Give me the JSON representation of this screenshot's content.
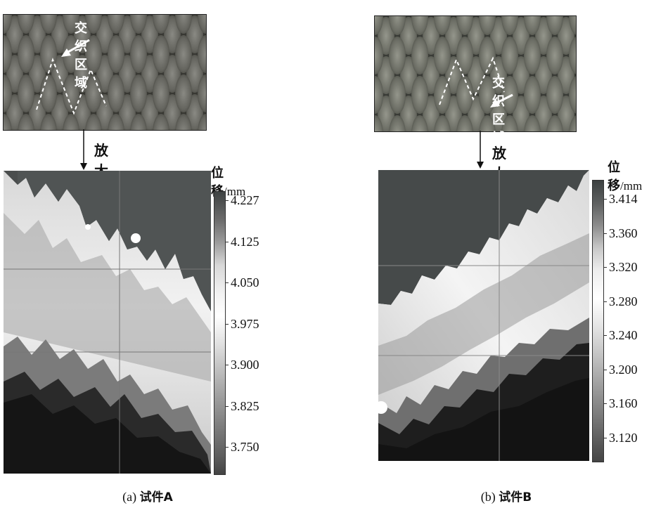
{
  "panel_a": {
    "annotation": "交织区域",
    "zoom_label": "放大",
    "colorbar_title": "位移",
    "colorbar_unit": "/mm",
    "ticks": [
      "4.227",
      "4.125",
      "4.050",
      "3.975",
      "3.900",
      "3.825",
      "3.750"
    ],
    "caption_prefix": "(a) ",
    "caption_text": "试件A"
  },
  "panel_b": {
    "annotation": "交织区域",
    "zoom_label": "放大",
    "colorbar_title": "位移",
    "colorbar_unit": "/mm",
    "ticks": [
      "3.414",
      "3.360",
      "3.320",
      "3.280",
      "3.240",
      "3.200",
      "3.160",
      "3.120"
    ],
    "caption_prefix": "(b) ",
    "caption_text": "试件B"
  }
}
